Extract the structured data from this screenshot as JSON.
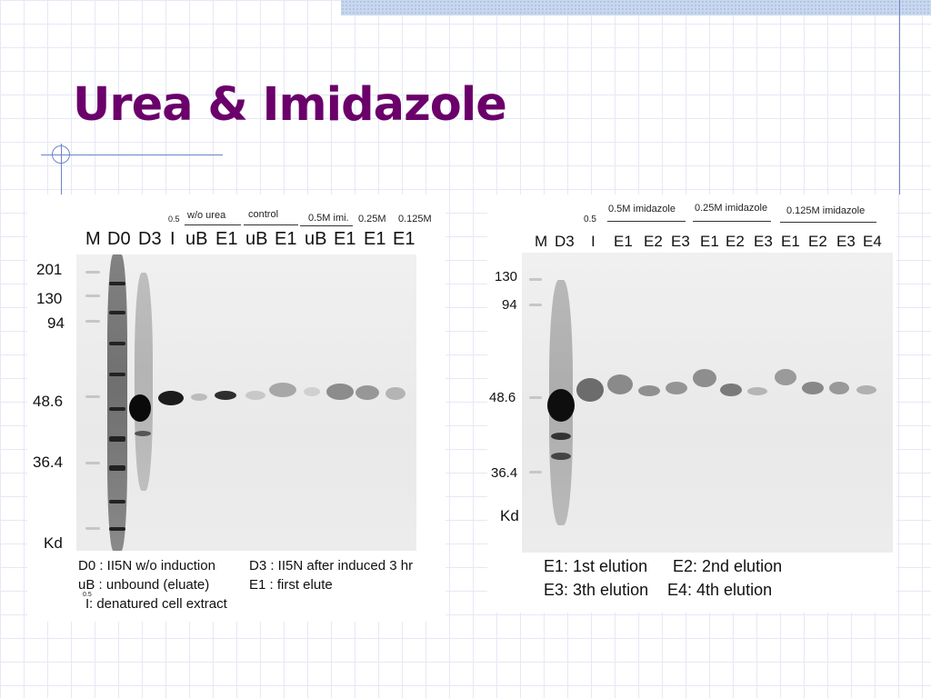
{
  "slide": {
    "title": "Urea & Imidazole"
  },
  "left_gel": {
    "lanes": [
      "M",
      "D0",
      "D3",
      "I",
      "uB",
      "E1",
      "uB",
      "E1",
      "uB",
      "E1",
      "E1",
      "E1"
    ],
    "lane_superscript": "0.5",
    "groups": {
      "wo_urea": "w/o urea",
      "control": "control",
      "imi_05": "0.5M imi.",
      "imi_025": "0.25M",
      "imi_0125": "0.125M"
    },
    "mw_markers": [
      "201",
      "130",
      "94",
      "48.6",
      "36.4"
    ],
    "mw_unit": "Kd",
    "legend": {
      "d0": "D0 : II5N w/o induction",
      "d3": "D3 : II5N after induced 3 hr",
      "ub": "uB : unbound (eluate)",
      "e1": "E1 : first elute",
      "i_sup": "0.5",
      "i_label": "I",
      "i": " : denatured cell extract"
    }
  },
  "right_gel": {
    "lanes": [
      "M",
      "D3",
      "I",
      "E1",
      "E2",
      "E3",
      "E1",
      "E2",
      "E3",
      "E1",
      "E2",
      "E3",
      "E4"
    ],
    "lane_superscript": "0.5",
    "groups": {
      "imi_05": "0.5M imidazole",
      "imi_025": "0.25M imidazole",
      "imi_0125": "0.125M imidazole"
    },
    "mw_markers": [
      "130",
      "94",
      "48.6",
      "36.4"
    ],
    "mw_unit": "Kd",
    "legend": {
      "e1": "E1: 1st elution",
      "e2": "E2: 2nd elution",
      "e3": "E3: 3th elution",
      "e4": "E4: 4th elution"
    }
  }
}
